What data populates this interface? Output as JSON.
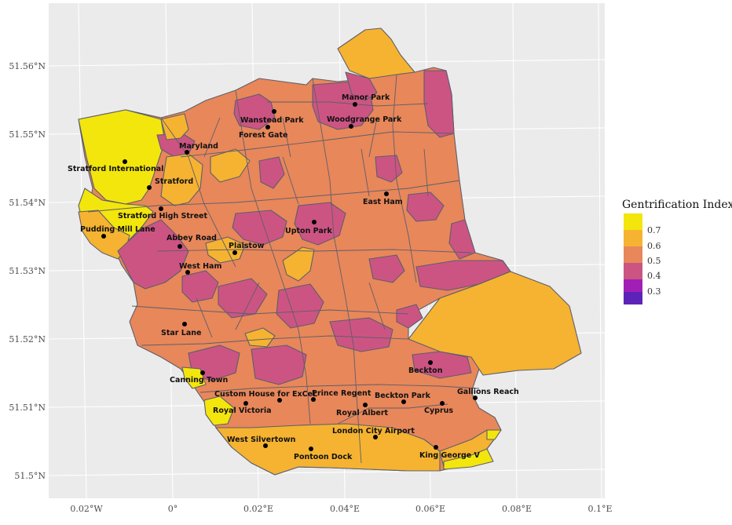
{
  "map": {
    "lat_ticks": [
      "51.5°N",
      "51.51°N",
      "51.52°N",
      "51.53°N",
      "51.54°N",
      "51.55°N",
      "51.56°N"
    ],
    "lon_ticks": [
      "0.02°W",
      "0°",
      "0.02°E",
      "0.04°E",
      "0.06°E",
      "0.08°E",
      "0.1°E"
    ]
  },
  "legend": {
    "title": "Gentrification Index",
    "items": [
      {
        "label": "0.7",
        "color": "#f2e60d"
      },
      {
        "label": "0.6",
        "color": "#f5b331"
      },
      {
        "label": "0.5",
        "color": "#e8875a"
      },
      {
        "label": "0.4",
        "color": "#cc5483"
      },
      {
        "label": "0.3",
        "color": "#a11fb6"
      }
    ],
    "extra_color": "#5d23b8"
  },
  "stations": [
    {
      "name": "Manor Park"
    },
    {
      "name": "Wanstead Park"
    },
    {
      "name": "Woodgrange Park"
    },
    {
      "name": "Forest Gate"
    },
    {
      "name": "Maryland"
    },
    {
      "name": "Stratford International"
    },
    {
      "name": "Stratford"
    },
    {
      "name": "East Ham"
    },
    {
      "name": "Stratford High Street"
    },
    {
      "name": "Pudding Mill Lane"
    },
    {
      "name": "Upton Park"
    },
    {
      "name": "Abbey Road"
    },
    {
      "name": "Plaistow"
    },
    {
      "name": "West Ham"
    },
    {
      "name": "Star Lane"
    },
    {
      "name": "Beckton"
    },
    {
      "name": "Canning Town"
    },
    {
      "name": "Gallions Reach"
    },
    {
      "name": "Custom House for ExCeL"
    },
    {
      "name": "Prince Regent"
    },
    {
      "name": "Beckton Park"
    },
    {
      "name": "Cyprus"
    },
    {
      "name": "Royal Victoria"
    },
    {
      "name": "Royal Albert"
    },
    {
      "name": "London City Airport"
    },
    {
      "name": "West Silvertown"
    },
    {
      "name": "King George V"
    },
    {
      "name": "Pontoon Dock"
    }
  ]
}
